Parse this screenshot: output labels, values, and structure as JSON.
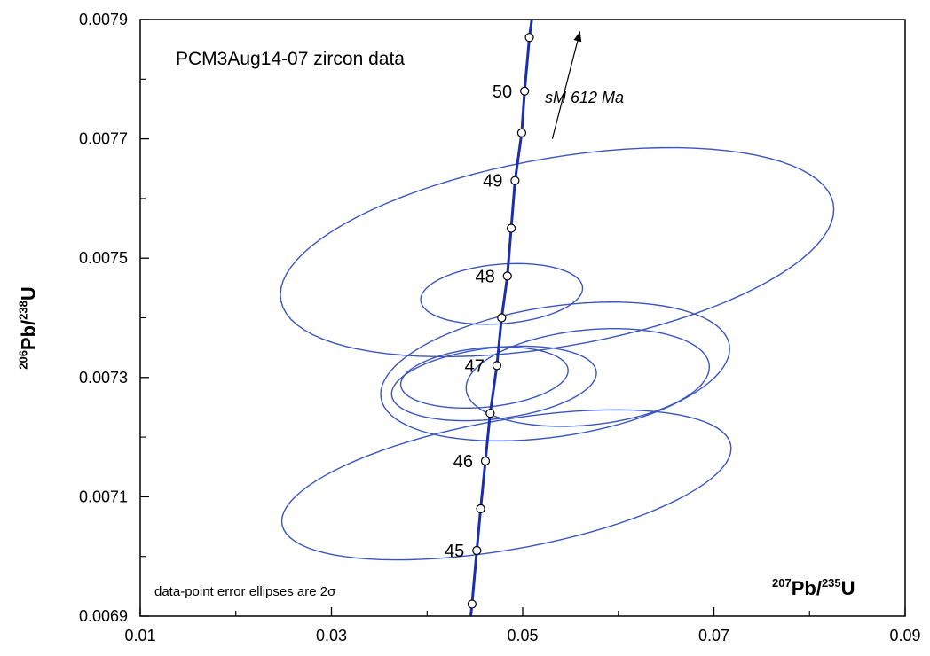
{
  "chart_data": {
    "type": "scatter",
    "title": "PCM3Aug14-07 zircon data",
    "xlabel": {
      "sup1": "207",
      "base1": "Pb/",
      "sup2": "235",
      "base2": "U"
    },
    "ylabel": {
      "sup1": "206",
      "base1": "Pb/",
      "sup2": "238",
      "base2": "U"
    },
    "xlim": [
      0.01,
      0.09
    ],
    "ylim": [
      0.0069,
      0.0079
    ],
    "x_ticks": [
      "0.01",
      "0.03",
      "0.05",
      "0.07",
      "0.09"
    ],
    "y_ticks": [
      "0.0069",
      "0.0071",
      "0.0073",
      "0.0075",
      "0.0077",
      "0.0079"
    ],
    "grid": false,
    "note": "data-point error ellipses are 2σ",
    "annotation": {
      "text": "sM 612 Ma",
      "arrow_from": [
        0.0531,
        0.0077
      ],
      "arrow_to": [
        0.056,
        0.00788
      ]
    },
    "concordia": {
      "color": "#1a2fb0",
      "points": [
        [
          0.0447,
          0.00692
        ],
        [
          0.0452,
          0.00701
        ],
        [
          0.0456,
          0.00708
        ],
        [
          0.0461,
          0.00716
        ],
        [
          0.0466,
          0.00724
        ],
        [
          0.0473,
          0.00732
        ],
        [
          0.0478,
          0.0074
        ],
        [
          0.0484,
          0.00747
        ],
        [
          0.0488,
          0.00755
        ],
        [
          0.0492,
          0.00763
        ],
        [
          0.0499,
          0.00771
        ],
        [
          0.0502,
          0.00778
        ],
        [
          0.0507,
          0.00787
        ]
      ],
      "age_labels": [
        {
          "text": "45",
          "x": 0.0452,
          "y": 0.00701
        },
        {
          "text": "46",
          "x": 0.0461,
          "y": 0.00716
        },
        {
          "text": "47",
          "x": 0.0473,
          "y": 0.00732
        },
        {
          "text": "48",
          "x": 0.0484,
          "y": 0.00747
        },
        {
          "text": "49",
          "x": 0.0492,
          "y": 0.00763
        },
        {
          "text": "50",
          "x": 0.0502,
          "y": 0.00778
        }
      ]
    },
    "ellipses": {
      "color": "#3a55c0",
      "items": [
        {
          "cx": 0.0536,
          "cy": 0.00751,
          "rx": 0.0295,
          "ry": 0.00016,
          "angle": 0.195
        },
        {
          "cx": 0.0478,
          "cy": 0.00744,
          "rx": 0.0085,
          "ry": 5e-05,
          "angle": 0.09
        },
        {
          "cx": 0.0534,
          "cy": 0.00731,
          "rx": 0.0185,
          "ry": 0.00011,
          "angle": 0.165
        },
        {
          "cx": 0.0568,
          "cy": 0.0073,
          "rx": 0.0128,
          "ry": 8e-05,
          "angle": 0.11
        },
        {
          "cx": 0.047,
          "cy": 0.00729,
          "rx": 0.0108,
          "ry": 6e-05,
          "angle": 0.13
        },
        {
          "cx": 0.046,
          "cy": 0.0073,
          "rx": 0.0088,
          "ry": 5e-05,
          "angle": 0.105
        },
        {
          "cx": 0.0483,
          "cy": 0.00712,
          "rx": 0.024,
          "ry": 0.00011,
          "angle": 0.205
        }
      ]
    }
  }
}
